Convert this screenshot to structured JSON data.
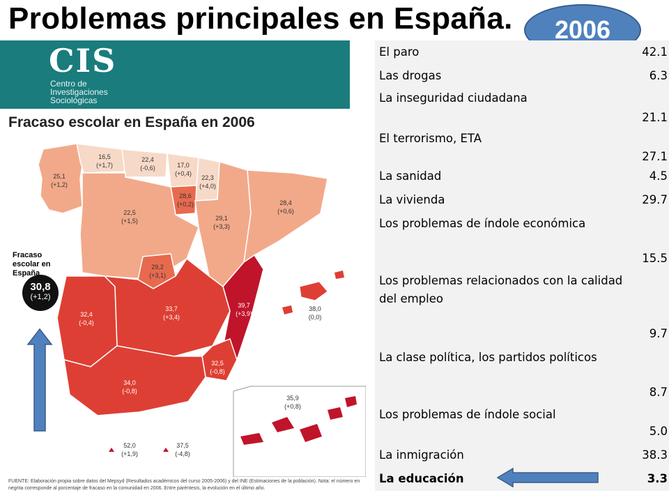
{
  "title": "Problemas principales en España.",
  "year_badge": "2006",
  "cis_logo": {
    "mark": "CIS",
    "subtitle_lines": [
      "Centro de",
      "Investigaciones",
      "Sociológicas"
    ]
  },
  "map": {
    "heading": "Fracaso escolar en España en 2006",
    "legend_title": "Fracaso escolar en España",
    "legend_value": "30,8",
    "legend_delta": "(+1,2)",
    "regions": [
      {
        "name": "Galicia",
        "value": "25,1",
        "delta": "(+1,2)"
      },
      {
        "name": "Asturias",
        "value": "16,5",
        "delta": "(+1,7)"
      },
      {
        "name": "Cantabria",
        "value": "22,4",
        "delta": "(-0,6)"
      },
      {
        "name": "País Vasco",
        "value": "17,0",
        "delta": "(+0,4)"
      },
      {
        "name": "Navarra",
        "value": "22,3",
        "delta": "(+4,0)"
      },
      {
        "name": "La Rioja",
        "value": "28,6",
        "delta": "(+0,2)"
      },
      {
        "name": "Castilla y León",
        "value": "22,5",
        "delta": "(+1,5)"
      },
      {
        "name": "Aragón",
        "value": "29,1",
        "delta": "(+3,3)"
      },
      {
        "name": "Cataluña",
        "value": "28,4",
        "delta": "(+0,6)"
      },
      {
        "name": "Madrid",
        "value": "29,2",
        "delta": "(+3,1)"
      },
      {
        "name": "Extremadura",
        "value": "32,4",
        "delta": "(-0,4)"
      },
      {
        "name": "Castilla-La Mancha",
        "value": "33,7",
        "delta": "(+3,4)"
      },
      {
        "name": "C. Valenciana",
        "value": "39,7",
        "delta": "(+3,9)"
      },
      {
        "name": "Baleares",
        "value": "38,0",
        "delta": "(0,0)"
      },
      {
        "name": "Murcia",
        "value": "32,5",
        "delta": "(-0,8)"
      },
      {
        "name": "Andalucía",
        "value": "34,0",
        "delta": "(-0,8)"
      },
      {
        "name": "Canarias",
        "value": "35,9",
        "delta": "(+0,8)"
      },
      {
        "name": "Ceuta",
        "value": "52,0",
        "delta": "(+1,9)"
      },
      {
        "name": "Melilla",
        "value": "37,5",
        "delta": "(-4,8)"
      }
    ],
    "source": "FUENTE: Elaboración propia sobre datos del Mepsyd (Resultados académicos del curso 2005-2006) y del INE (Estimaciones de la población). Nota: el número en negrita corresponde al porcentaje de fracaso en la comunidad en 2006. Entre paréntesis, la evolución en el último año."
  },
  "problems": [
    {
      "label": "El paro",
      "value": "42.1"
    },
    {
      "label": "Las drogas",
      "value": "6.3"
    },
    {
      "label": "La inseguridad ciudadana",
      "value": "21.1"
    },
    {
      "label": "El terrorismo, ETA",
      "value": "27.1"
    },
    {
      "label": "La sanidad",
      "value": "4.5"
    },
    {
      "label": "La vivienda",
      "value": "29.7"
    },
    {
      "label": "Los problemas de índole económica",
      "value": "15.5"
    },
    {
      "label": "Los problemas relacionados con la calidad del empleo",
      "value": "9.7"
    },
    {
      "label": "La clase política, los partidos políticos",
      "value": "8.7"
    },
    {
      "label": "Los problemas de índole social",
      "value": "5.0"
    },
    {
      "label": "La inmigración",
      "value": "38.3"
    },
    {
      "label": "La educación",
      "value": "3.3"
    }
  ],
  "colors": {
    "badge": "#4f81bd",
    "cis_bg": "#1a7c7c",
    "light": "#f7d9c8",
    "peach": "#f2a98a",
    "mid": "#e86a4e",
    "dark": "#de3f34",
    "darkest": "#c0142b",
    "arrow": "#4f81bd"
  }
}
